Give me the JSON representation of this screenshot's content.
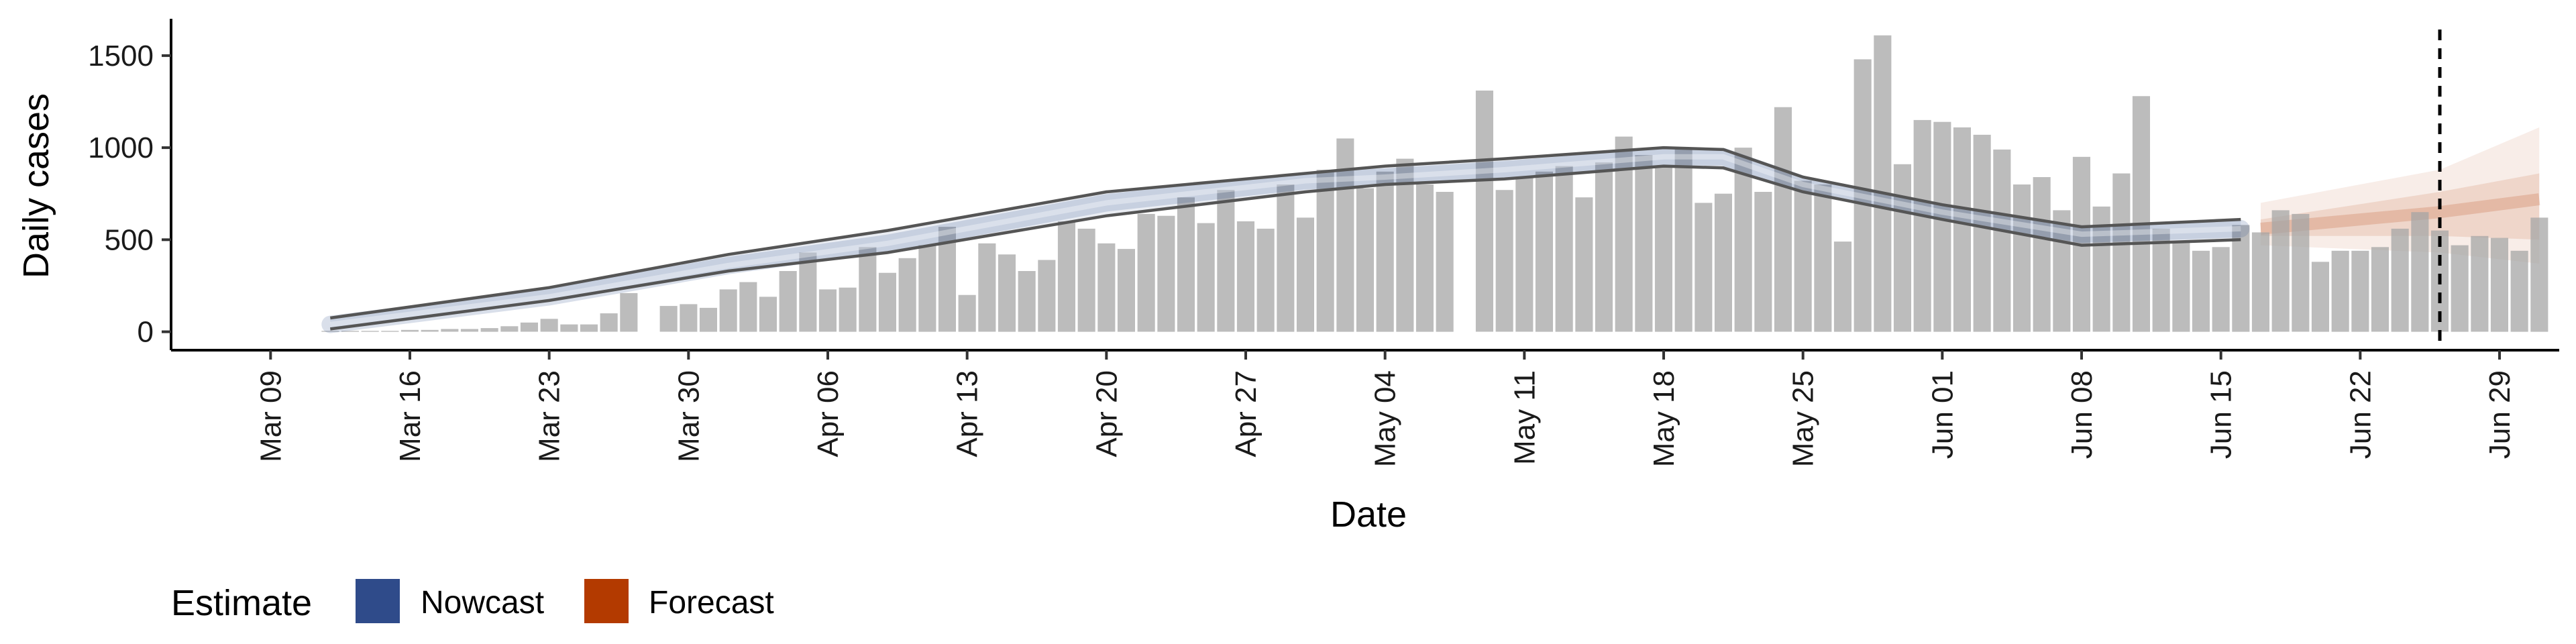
{
  "chart_data": {
    "type": "bar",
    "xlabel": "Date",
    "ylabel": "Daily cases",
    "ylim": [
      -100,
      1700
    ],
    "yticks": [
      0,
      500,
      1000,
      1500
    ],
    "x_range": [
      "2020-03-04",
      "2020-07-02"
    ],
    "x_ticks": [
      {
        "date": "2020-03-09",
        "label": "Mar 09"
      },
      {
        "date": "2020-03-16",
        "label": "Mar 16"
      },
      {
        "date": "2020-03-23",
        "label": "Mar 23"
      },
      {
        "date": "2020-03-30",
        "label": "Mar 30"
      },
      {
        "date": "2020-04-06",
        "label": "Apr 06"
      },
      {
        "date": "2020-04-13",
        "label": "Apr 13"
      },
      {
        "date": "2020-04-20",
        "label": "Apr 20"
      },
      {
        "date": "2020-04-27",
        "label": "Apr 27"
      },
      {
        "date": "2020-05-04",
        "label": "May 04"
      },
      {
        "date": "2020-05-11",
        "label": "May 11"
      },
      {
        "date": "2020-05-18",
        "label": "May 18"
      },
      {
        "date": "2020-05-25",
        "label": "May 25"
      },
      {
        "date": "2020-06-01",
        "label": "Jun 01"
      },
      {
        "date": "2020-06-08",
        "label": "Jun 08"
      },
      {
        "date": "2020-06-15",
        "label": "Jun 15"
      },
      {
        "date": "2020-06-22",
        "label": "Jun 22"
      },
      {
        "date": "2020-06-29",
        "label": "Jun 29"
      }
    ],
    "bars_start_date": "2020-03-12",
    "daily_cases": [
      5,
      5,
      5,
      5,
      10,
      10,
      15,
      15,
      20,
      30,
      50,
      70,
      40,
      40,
      100,
      210,
      0,
      140,
      150,
      130,
      230,
      270,
      190,
      330,
      430,
      230,
      240,
      460,
      320,
      400,
      470,
      570,
      200,
      480,
      420,
      330,
      390,
      600,
      560,
      480,
      450,
      640,
      630,
      730,
      590,
      770,
      600,
      560,
      800,
      620,
      880,
      1050,
      780,
      870,
      940,
      800,
      760,
      0,
      1310,
      770,
      840,
      870,
      900,
      730,
      920,
      1060,
      960,
      900,
      1000,
      700,
      750,
      1000,
      760,
      1220,
      820,
      800,
      490,
      1480,
      1610,
      910,
      1150,
      1140,
      1110,
      1070,
      990,
      800,
      840,
      660,
      950,
      680,
      860,
      1280,
      560,
      490,
      440,
      460,
      580,
      540,
      660,
      640,
      380,
      440,
      440,
      460,
      560,
      650,
      550,
      470,
      520,
      510,
      440,
      620
    ],
    "grid": false,
    "legend": {
      "position": "bottom-left",
      "title": "Estimate",
      "items": [
        {
          "label": "Nowcast",
          "color": "#2f4b8a"
        },
        {
          "label": "Forecast",
          "color": "#b33a00"
        }
      ]
    },
    "nowcast": {
      "start": "2020-03-12",
      "end": "2020-06-16",
      "color": "#2f4b8a",
      "median": [
        [
          "2020-03-12",
          40
        ],
        [
          "2020-03-23",
          190
        ],
        [
          "2020-04-01",
          360
        ],
        [
          "2020-04-09",
          480
        ],
        [
          "2020-04-20",
          700
        ],
        [
          "2020-04-30",
          820
        ],
        [
          "2020-05-04",
          840
        ],
        [
          "2020-05-10",
          880
        ],
        [
          "2020-05-18",
          950
        ],
        [
          "2020-05-21",
          950
        ],
        [
          "2020-05-25",
          800
        ],
        [
          "2020-06-01",
          650
        ],
        [
          "2020-06-08",
          530
        ],
        [
          "2020-06-16",
          560
        ]
      ],
      "outer_upper": [
        [
          "2020-03-12",
          75
        ],
        [
          "2020-03-23",
          240
        ],
        [
          "2020-04-01",
          420
        ],
        [
          "2020-04-09",
          550
        ],
        [
          "2020-04-20",
          760
        ],
        [
          "2020-04-30",
          860
        ],
        [
          "2020-05-04",
          900
        ],
        [
          "2020-05-10",
          940
        ],
        [
          "2020-05-18",
          1000
        ],
        [
          "2020-05-21",
          990
        ],
        [
          "2020-05-25",
          840
        ],
        [
          "2020-06-01",
          690
        ],
        [
          "2020-06-08",
          570
        ],
        [
          "2020-06-16",
          610
        ]
      ],
      "outer_lower": [
        [
          "2020-03-12",
          15
        ],
        [
          "2020-03-23",
          170
        ],
        [
          "2020-04-01",
          330
        ],
        [
          "2020-04-09",
          430
        ],
        [
          "2020-04-20",
          630
        ],
        [
          "2020-04-30",
          760
        ],
        [
          "2020-05-04",
          800
        ],
        [
          "2020-05-10",
          830
        ],
        [
          "2020-05-18",
          900
        ],
        [
          "2020-05-21",
          890
        ],
        [
          "2020-05-25",
          760
        ],
        [
          "2020-06-01",
          610
        ],
        [
          "2020-06-08",
          470
        ],
        [
          "2020-06-16",
          500
        ]
      ]
    },
    "forecast": {
      "start": "2020-06-17",
      "end": "2020-07-01",
      "color": "#b33a00",
      "median": [
        [
          "2020-06-17",
          560
        ],
        [
          "2020-06-26",
          650
        ],
        [
          "2020-07-01",
          720
        ]
      ],
      "inner_upper": [
        [
          "2020-06-17",
          610
        ],
        [
          "2020-06-26",
          760
        ],
        [
          "2020-07-01",
          860
        ]
      ],
      "inner_lower": [
        [
          "2020-06-17",
          520
        ],
        [
          "2020-06-26",
          520
        ],
        [
          "2020-07-01",
          500
        ]
      ],
      "outer_upper": [
        [
          "2020-06-17",
          700
        ],
        [
          "2020-06-26",
          880
        ],
        [
          "2020-07-01",
          1110
        ]
      ],
      "outer_lower": [
        [
          "2020-06-17",
          470
        ],
        [
          "2020-06-26",
          430
        ],
        [
          "2020-07-01",
          370
        ]
      ]
    },
    "reference_line": {
      "date": "2020-06-26",
      "style": "dashed",
      "color": "#000000"
    }
  }
}
